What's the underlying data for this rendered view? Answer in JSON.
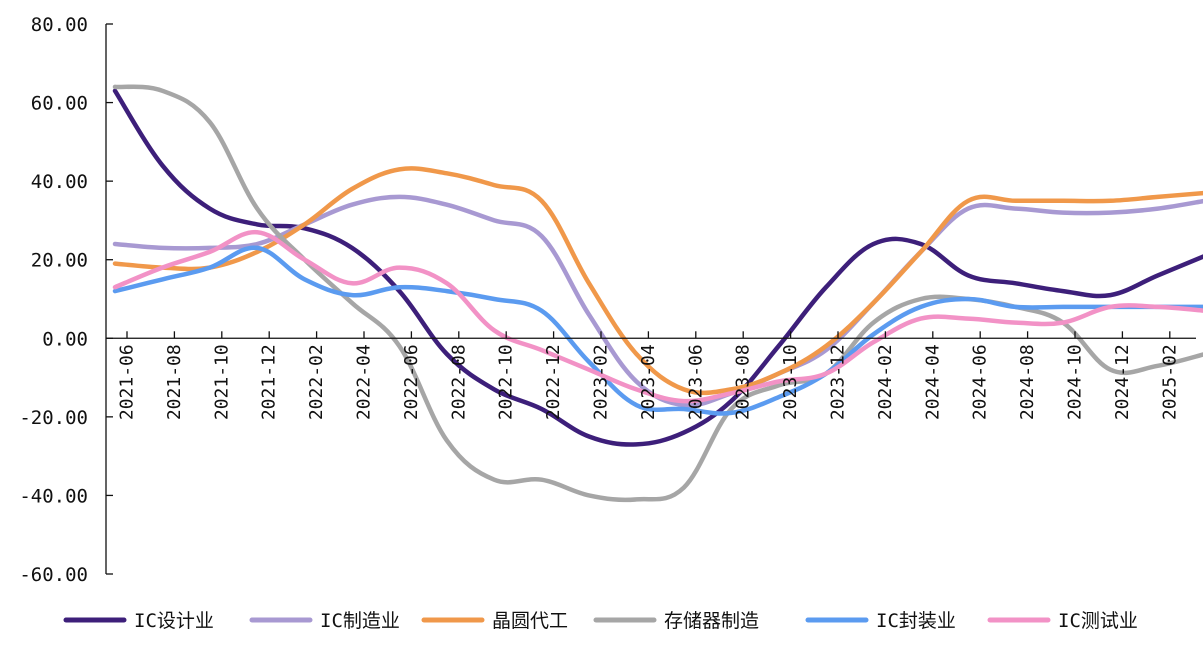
{
  "chart_data": {
    "type": "line",
    "title": "",
    "xlabel": "",
    "ylabel": "",
    "ylim": [
      -60,
      80
    ],
    "y_ticks": [
      "80.00",
      "60.00",
      "40.00",
      "20.00",
      "0.00",
      "-20.00",
      "-40.00",
      "-60.00"
    ],
    "x_ticks": [
      "2021-06",
      "2021-08",
      "2021-10",
      "2021-12",
      "2022-02",
      "2022-04",
      "2022-06",
      "2022-08",
      "2022-10",
      "2022-12",
      "2023-02",
      "2023-04",
      "2023-06",
      "2023-08",
      "2023-10",
      "2023-12",
      "2024-02",
      "2024-04",
      "2024-06",
      "2024-08",
      "2024-10",
      "2024-12",
      "2025-02"
    ],
    "x": [
      "2021-06",
      "2021-08",
      "2021-10",
      "2021-12",
      "2022-02",
      "2022-04",
      "2022-06",
      "2022-08",
      "2022-10",
      "2022-12",
      "2023-02",
      "2023-04",
      "2023-06",
      "2023-08",
      "2023-10",
      "2023-12",
      "2024-02",
      "2024-04",
      "2024-06",
      "2024-08",
      "2024-10",
      "2024-12",
      "2025-02",
      "2025-03"
    ],
    "grid": false,
    "legend_position": "bottom",
    "series": [
      {
        "name": "IC设计业",
        "color": "#3d1f7a",
        "values": [
          63,
          44,
          33,
          29,
          28,
          23,
          12,
          -4,
          -13,
          -18,
          -25,
          -27,
          -24,
          -16,
          -2,
          13,
          24,
          24,
          16,
          14,
          12,
          11,
          16,
          21
        ]
      },
      {
        "name": "IC制造业",
        "color": "#a899d2",
        "values": [
          24,
          23,
          23,
          24,
          29,
          34,
          36,
          34,
          30,
          26,
          6,
          -11,
          -17,
          -14,
          -9,
          -3,
          9,
          22,
          33,
          33,
          32,
          32,
          33,
          35
        ]
      },
      {
        "name": "晶圆代工",
        "color": "#f0984a",
        "values": [
          19,
          18,
          18,
          22,
          29,
          38,
          43,
          42,
          39,
          35,
          14,
          -4,
          -13,
          -13,
          -9,
          -2,
          9,
          22,
          35,
          35,
          35,
          35,
          36,
          37
        ]
      },
      {
        "name": "存储器制造",
        "color": "#a6a6a6",
        "values": [
          64,
          63,
          55,
          33,
          20,
          9,
          -2,
          -26,
          -36,
          -36,
          -40,
          -41,
          -38,
          -18,
          -12,
          -9,
          4,
          10,
          10,
          8,
          4,
          -8,
          -7,
          -4
        ]
      },
      {
        "name": "IC封装业",
        "color": "#5b9bf0",
        "values": [
          12,
          15,
          18,
          23,
          15,
          11,
          13,
          12,
          10,
          7,
          -6,
          -17,
          -18,
          -19,
          -15,
          -9,
          1,
          8,
          10,
          8,
          8,
          8,
          8,
          8
        ]
      },
      {
        "name": "IC测试业",
        "color": "#f292c6",
        "values": [
          13,
          18,
          22,
          27,
          20,
          14,
          18,
          14,
          2,
          -3,
          -8,
          -13,
          -16,
          -14,
          -11,
          -9,
          -1,
          5,
          5,
          4,
          4,
          8,
          8,
          7
        ]
      }
    ]
  }
}
